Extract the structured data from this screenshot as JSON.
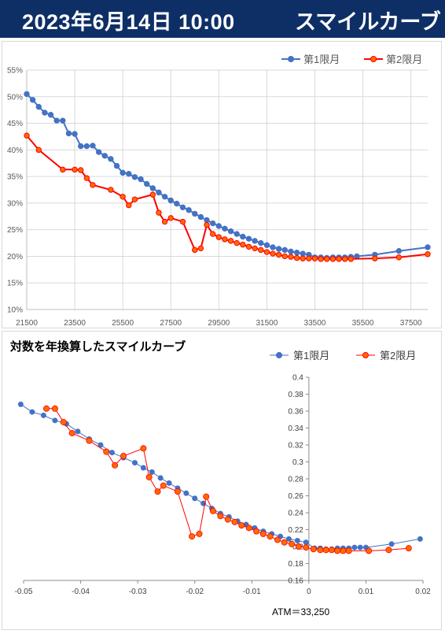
{
  "header": {
    "date": "2023年6月14日 10:00",
    "title": "スマイルカーブ"
  },
  "colors": {
    "header_bg": "#0e2f66",
    "series1": "#4472c4",
    "series2": "#ff0000",
    "series2_marker": "#ff6a00"
  },
  "chart_data": [
    {
      "type": "line",
      "title": "",
      "xlabel": "",
      "ylabel": "",
      "xlim": [
        21500,
        38200
      ],
      "ylim": [
        0.1,
        0.55
      ],
      "x_ticks": [
        "21500",
        "23500",
        "25500",
        "27500",
        "29500",
        "31500",
        "33500",
        "35500",
        "37500"
      ],
      "y_ticks": [
        "10%",
        "15%",
        "20%",
        "25%",
        "30%",
        "35%",
        "40%",
        "45%",
        "50%",
        "55%"
      ],
      "legend": "top-right",
      "grid": true,
      "series": [
        {
          "name": "第1限月",
          "color": "#4472c4",
          "marker": "#4472c4",
          "points": [
            [
              21500,
              0.505
            ],
            [
              21750,
              0.494
            ],
            [
              22000,
              0.481
            ],
            [
              22250,
              0.47
            ],
            [
              22500,
              0.466
            ],
            [
              22750,
              0.455
            ],
            [
              23000,
              0.455
            ],
            [
              23250,
              0.431
            ],
            [
              23500,
              0.43
            ],
            [
              23750,
              0.407
            ],
            [
              24000,
              0.407
            ],
            [
              24250,
              0.408
            ],
            [
              24500,
              0.396
            ],
            [
              24750,
              0.389
            ],
            [
              25000,
              0.383
            ],
            [
              25250,
              0.37
            ],
            [
              25500,
              0.357
            ],
            [
              25750,
              0.355
            ],
            [
              26000,
              0.349
            ],
            [
              26250,
              0.345
            ],
            [
              26500,
              0.336
            ],
            [
              26750,
              0.328
            ],
            [
              27000,
              0.32
            ],
            [
              27250,
              0.312
            ],
            [
              27500,
              0.305
            ],
            [
              27750,
              0.299
            ],
            [
              28000,
              0.292
            ],
            [
              28250,
              0.287
            ],
            [
              28500,
              0.28
            ],
            [
              28750,
              0.274
            ],
            [
              29000,
              0.268
            ],
            [
              29250,
              0.262
            ],
            [
              29500,
              0.257
            ],
            [
              29750,
              0.252
            ],
            [
              30000,
              0.247
            ],
            [
              30250,
              0.242
            ],
            [
              30500,
              0.237
            ],
            [
              30750,
              0.233
            ],
            [
              31000,
              0.229
            ],
            [
              31250,
              0.225
            ],
            [
              31500,
              0.221
            ],
            [
              31750,
              0.217
            ],
            [
              32000,
              0.214
            ],
            [
              32250,
              0.212
            ],
            [
              32500,
              0.209
            ],
            [
              32750,
              0.207
            ],
            [
              33000,
              0.205
            ],
            [
              33250,
              0.203
            ],
            [
              33500,
              0.198
            ],
            [
              33750,
              0.198
            ],
            [
              34000,
              0.197
            ],
            [
              34250,
              0.198
            ],
            [
              34500,
              0.198
            ],
            [
              34750,
              0.198
            ],
            [
              35000,
              0.199
            ],
            [
              35250,
              0.2
            ],
            [
              36000,
              0.203
            ],
            [
              37000,
              0.21
            ],
            [
              38200,
              0.217
            ]
          ]
        },
        {
          "name": "第2限月",
          "color": "#ff0000",
          "marker": "#ff6a00",
          "points": [
            [
              21500,
              0.427
            ],
            [
              22000,
              0.4
            ],
            [
              23000,
              0.363
            ],
            [
              23500,
              0.363
            ],
            [
              23750,
              0.362
            ],
            [
              24000,
              0.347
            ],
            [
              24250,
              0.334
            ],
            [
              25000,
              0.325
            ],
            [
              25500,
              0.312
            ],
            [
              25750,
              0.296
            ],
            [
              26000,
              0.307
            ],
            [
              26750,
              0.316
            ],
            [
              27000,
              0.282
            ],
            [
              27250,
              0.265
            ],
            [
              27500,
              0.272
            ],
            [
              28000,
              0.265
            ],
            [
              28500,
              0.212
            ],
            [
              28750,
              0.215
            ],
            [
              29000,
              0.259
            ],
            [
              29250,
              0.242
            ],
            [
              29500,
              0.236
            ],
            [
              29750,
              0.232
            ],
            [
              30000,
              0.229
            ],
            [
              30250,
              0.225
            ],
            [
              30500,
              0.222
            ],
            [
              30750,
              0.218
            ],
            [
              31000,
              0.215
            ],
            [
              31250,
              0.212
            ],
            [
              31500,
              0.208
            ],
            [
              31750,
              0.205
            ],
            [
              32000,
              0.203
            ],
            [
              32250,
              0.2
            ],
            [
              32500,
              0.199
            ],
            [
              32750,
              0.197
            ],
            [
              33000,
              0.196
            ],
            [
              33250,
              0.196
            ],
            [
              33500,
              0.196
            ],
            [
              33750,
              0.195
            ],
            [
              34000,
              0.195
            ],
            [
              34250,
              0.195
            ],
            [
              34500,
              0.195
            ],
            [
              34750,
              0.195
            ],
            [
              35000,
              0.195
            ],
            [
              36000,
              0.196
            ],
            [
              37000,
              0.198
            ],
            [
              38200,
              0.204
            ]
          ]
        }
      ]
    },
    {
      "type": "scatter",
      "title": "対数を年換算したスマイルカーブ",
      "xlabel": "",
      "ylabel": "",
      "xlim": [
        -0.05,
        0.02
      ],
      "ylim": [
        0.16,
        0.4
      ],
      "x_ticks": [
        "-0.05",
        "-0.04",
        "-0.03",
        "-0.02",
        "-0.01",
        "0",
        "0.01",
        "0.02"
      ],
      "y_ticks": [
        "0.16",
        "0.18",
        "0.2",
        "0.22",
        "0.24",
        "0.26",
        "0.28",
        "0.3",
        "0.32",
        "0.34",
        "0.36",
        "0.38",
        "0.4"
      ],
      "legend": "top-right",
      "annotation": "ATM＝33,250",
      "series": [
        {
          "name": "第1限月",
          "color": "#4472c4",
          "marker": "#4472c4",
          "points": [
            [
              -0.0505,
              0.368
            ],
            [
              -0.0485,
              0.359
            ],
            [
              -0.0465,
              0.355
            ],
            [
              -0.0445,
              0.349
            ],
            [
              -0.0425,
              0.345
            ],
            [
              -0.0405,
              0.336
            ],
            [
              -0.0385,
              0.327
            ],
            [
              -0.0365,
              0.32
            ],
            [
              -0.0345,
              0.311
            ],
            [
              -0.0325,
              0.305
            ],
            [
              -0.0305,
              0.299
            ],
            [
              -0.029,
              0.293
            ],
            [
              -0.0275,
              0.288
            ],
            [
              -0.026,
              0.281
            ],
            [
              -0.0245,
              0.275
            ],
            [
              -0.023,
              0.269
            ],
            [
              -0.0215,
              0.263
            ],
            [
              -0.02,
              0.257
            ],
            [
              -0.0185,
              0.251
            ],
            [
              -0.017,
              0.245
            ],
            [
              -0.0155,
              0.239
            ],
            [
              -0.014,
              0.235
            ],
            [
              -0.0125,
              0.23
            ],
            [
              -0.011,
              0.226
            ],
            [
              -0.0095,
              0.222
            ],
            [
              -0.008,
              0.218
            ],
            [
              -0.0065,
              0.215
            ],
            [
              -0.005,
              0.212
            ],
            [
              -0.0035,
              0.209
            ],
            [
              -0.002,
              0.207
            ],
            [
              -0.0005,
              0.205
            ],
            [
              0.001,
              0.198
            ],
            [
              0.002,
              0.198
            ],
            [
              0.003,
              0.197
            ],
            [
              0.004,
              0.197
            ],
            [
              0.005,
              0.198
            ],
            [
              0.006,
              0.198
            ],
            [
              0.007,
              0.198
            ],
            [
              0.008,
              0.199
            ],
            [
              0.009,
              0.199
            ],
            [
              0.01,
              0.199
            ],
            [
              0.0145,
              0.203
            ],
            [
              0.0195,
              0.209
            ]
          ]
        },
        {
          "name": "第2限月",
          "color": "#ff0000",
          "marker": "#ff6a00",
          "points": [
            [
              -0.046,
              0.363
            ],
            [
              -0.0445,
              0.363
            ],
            [
              -0.043,
              0.347
            ],
            [
              -0.0415,
              0.334
            ],
            [
              -0.0385,
              0.325
            ],
            [
              -0.0355,
              0.312
            ],
            [
              -0.034,
              0.296
            ],
            [
              -0.0325,
              0.307
            ],
            [
              -0.029,
              0.316
            ],
            [
              -0.028,
              0.282
            ],
            [
              -0.0265,
              0.265
            ],
            [
              -0.0255,
              0.272
            ],
            [
              -0.023,
              0.265
            ],
            [
              -0.0205,
              0.212
            ],
            [
              -0.0192,
              0.215
            ],
            [
              -0.018,
              0.259
            ],
            [
              -0.0168,
              0.242
            ],
            [
              -0.0155,
              0.236
            ],
            [
              -0.0142,
              0.232
            ],
            [
              -0.013,
              0.229
            ],
            [
              -0.0118,
              0.225
            ],
            [
              -0.0105,
              0.222
            ],
            [
              -0.0092,
              0.218
            ],
            [
              -0.008,
              0.215
            ],
            [
              -0.0068,
              0.212
            ],
            [
              -0.0055,
              0.208
            ],
            [
              -0.0043,
              0.205
            ],
            [
              -0.003,
              0.203
            ],
            [
              -0.0018,
              0.2
            ],
            [
              -0.0005,
              0.199
            ],
            [
              0.0008,
              0.197
            ],
            [
              0.002,
              0.196
            ],
            [
              0.003,
              0.196
            ],
            [
              0.004,
              0.196
            ],
            [
              0.005,
              0.195
            ],
            [
              0.006,
              0.195
            ],
            [
              0.007,
              0.195
            ],
            [
              0.0105,
              0.195
            ],
            [
              0.014,
              0.196
            ],
            [
              0.0175,
              0.198
            ]
          ]
        }
      ]
    }
  ]
}
